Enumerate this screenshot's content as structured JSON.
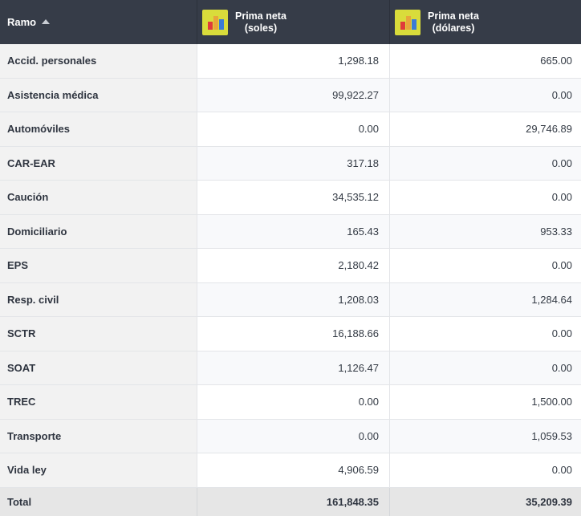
{
  "header": {
    "ramo_label": "Ramo",
    "col_soles": [
      "Prima neta",
      "(soles)"
    ],
    "col_dolares": [
      "Prima neta",
      "(dólares)"
    ]
  },
  "rows": [
    {
      "ramo": "Accid. personales",
      "soles": "1,298.18",
      "dolares": "665.00"
    },
    {
      "ramo": "Asistencia médica",
      "soles": "99,922.27",
      "dolares": "0.00"
    },
    {
      "ramo": "Automóviles",
      "soles": "0.00",
      "dolares": "29,746.89"
    },
    {
      "ramo": "CAR-EAR",
      "soles": "317.18",
      "dolares": "0.00"
    },
    {
      "ramo": "Caución",
      "soles": "34,535.12",
      "dolares": "0.00"
    },
    {
      "ramo": "Domiciliario",
      "soles": "165.43",
      "dolares": "953.33"
    },
    {
      "ramo": "EPS",
      "soles": "2,180.42",
      "dolares": "0.00"
    },
    {
      "ramo": "Resp. civil",
      "soles": "1,208.03",
      "dolares": "1,284.64"
    },
    {
      "ramo": "SCTR",
      "soles": "16,188.66",
      "dolares": "0.00"
    },
    {
      "ramo": "SOAT",
      "soles": "1,126.47",
      "dolares": "0.00"
    },
    {
      "ramo": "TREC",
      "soles": "0.00",
      "dolares": "1,500.00"
    },
    {
      "ramo": "Transporte",
      "soles": "0.00",
      "dolares": "1,059.53"
    },
    {
      "ramo": "Vida ley",
      "soles": "4,906.59",
      "dolares": "0.00"
    }
  ],
  "total": {
    "label": "Total",
    "soles": "161,848.35",
    "dolares": "35,209.39"
  },
  "icons": {
    "sort": "sort-ascending-icon",
    "chart": "bar-chart-icon"
  },
  "colors": {
    "header_bg": "#363c48",
    "chart_icon_bg": "#d9dc3b"
  }
}
